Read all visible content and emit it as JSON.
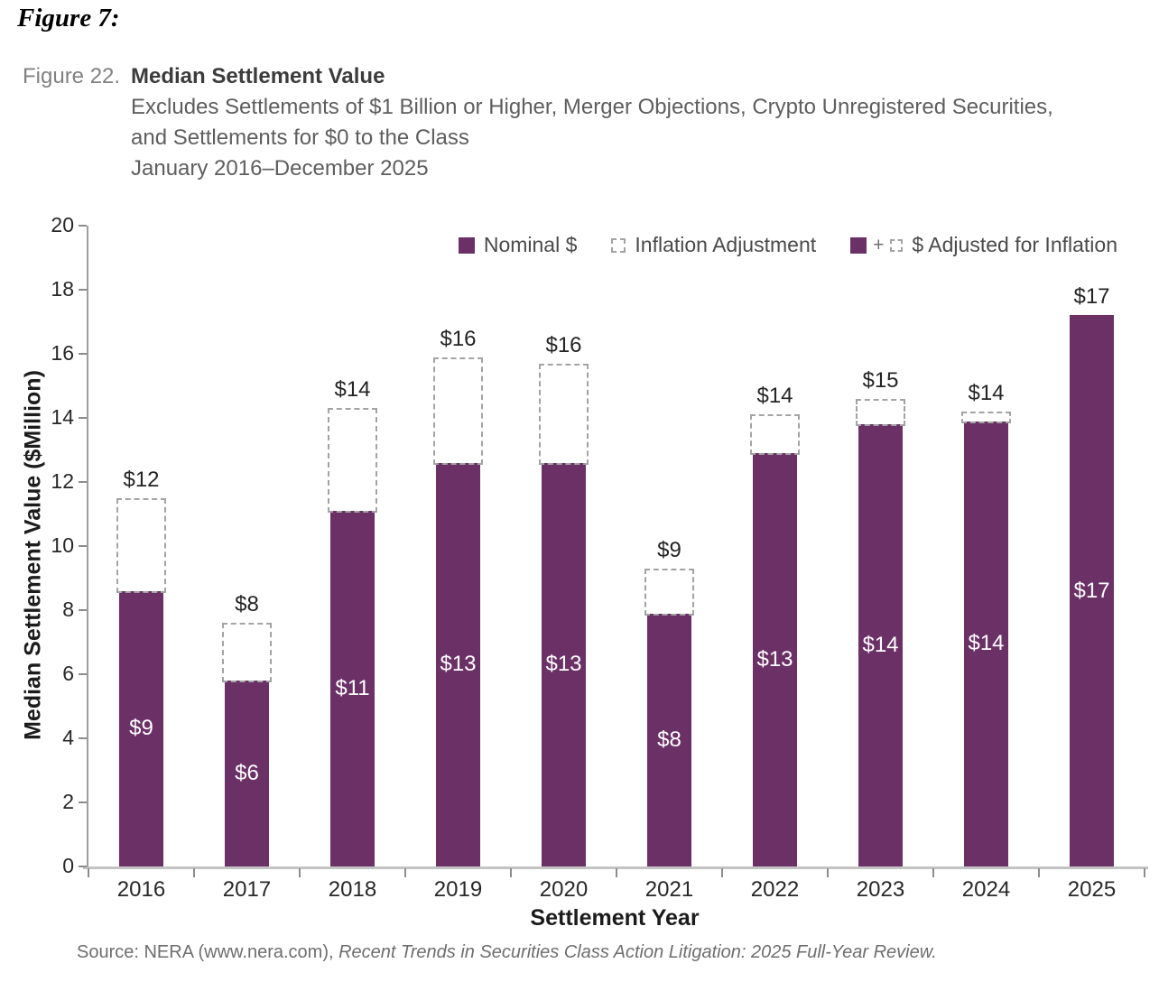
{
  "header": {
    "figure_tag": "Figure 7:",
    "figure_number": "Figure 22.",
    "title": "Median Settlement Value",
    "subtitle_lines": [
      "Excludes Settlements of $1 Billion or Higher, Merger Objections, Crypto Unregistered Securities,",
      "and Settlements for $0 to the Class",
      "January 2016–December 2025"
    ]
  },
  "legend": {
    "nominal_label": "Nominal $",
    "inflation_label": "Inflation Adjustment",
    "plus_sign": "+",
    "adjusted_label": "$ Adjusted for Inflation"
  },
  "chart_data": {
    "type": "bar",
    "title": "Median Settlement Value",
    "xlabel": "Settlement Year",
    "ylabel": "Median Settlement Value ($Million)",
    "ylim": [
      0,
      20
    ],
    "ytick_step": 2,
    "grid": false,
    "legend_position": "top-right-inside",
    "categories": [
      "2016",
      "2017",
      "2018",
      "2019",
      "2020",
      "2021",
      "2022",
      "2023",
      "2024",
      "2025"
    ],
    "series": [
      {
        "name": "Nominal $",
        "values": [
          8.6,
          5.8,
          11.1,
          12.6,
          12.6,
          7.9,
          12.9,
          13.8,
          13.9,
          17.2
        ],
        "labels": [
          "$9",
          "$6",
          "$11",
          "$13",
          "$13",
          "$8",
          "$13",
          "$14",
          "$14",
          "$17"
        ]
      },
      {
        "name": "$ Adjusted for Inflation",
        "values": [
          11.5,
          7.6,
          14.3,
          15.9,
          15.7,
          9.3,
          14.1,
          14.6,
          14.2,
          17.2
        ],
        "labels": [
          "$12",
          "$8",
          "$14",
          "$16",
          "$16",
          "$9",
          "$14",
          "$15",
          "$14",
          "$17"
        ]
      }
    ],
    "colors": {
      "bar": "#6B3167",
      "dash": "#a3a3a3"
    }
  },
  "footer": {
    "source_regular": "Source: NERA (www.nera.com), ",
    "source_italic": "Recent Trends in Securities Class Action Litigation: 2025 Full-Year Review."
  }
}
